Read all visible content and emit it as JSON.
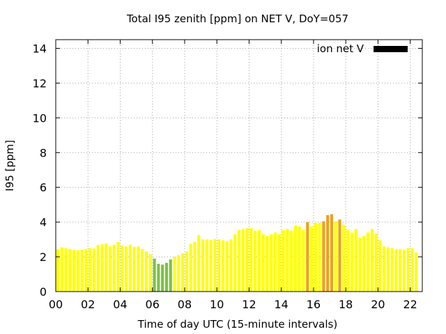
{
  "chart_data": {
    "type": "bar",
    "title": "Total I95 zenith [ppm] on NET V, DoY=057",
    "xlabel": "Time of day UTC (15-minute intervals)",
    "ylabel": "I95 [ppm]",
    "xlim": [
      0,
      22.75
    ],
    "ylim": [
      0,
      14.5
    ],
    "x_ticks": [
      "00",
      "02",
      "04",
      "06",
      "08",
      "10",
      "12",
      "14",
      "16",
      "18",
      "20",
      "22"
    ],
    "y_ticks": [
      "0",
      "2",
      "4",
      "6",
      "8",
      "10",
      "12",
      "14"
    ],
    "grid": true,
    "legend": {
      "label": "ion net V",
      "color": "#000000",
      "placement": "top-right"
    },
    "interval_hours": 0.25,
    "colors": {
      "low": "#7cc242",
      "normal": "#ffff00",
      "high": "#f0a01e"
    },
    "values": [
      2.42,
      2.55,
      2.5,
      2.45,
      2.4,
      2.38,
      2.42,
      2.45,
      2.5,
      2.48,
      2.68,
      2.72,
      2.78,
      2.6,
      2.7,
      2.85,
      2.65,
      2.6,
      2.7,
      2.58,
      2.6,
      2.45,
      2.3,
      2.15,
      1.9,
      1.6,
      1.55,
      1.65,
      1.85,
      2.0,
      2.1,
      2.2,
      2.3,
      2.75,
      2.85,
      3.25,
      3.0,
      3.0,
      2.98,
      3.02,
      3.0,
      2.95,
      2.9,
      3.0,
      3.3,
      3.55,
      3.6,
      3.65,
      3.65,
      3.5,
      3.55,
      3.3,
      3.2,
      3.3,
      3.4,
      3.3,
      3.55,
      3.6,
      3.5,
      3.8,
      3.75,
      3.55,
      4.0,
      3.75,
      3.95,
      3.95,
      4.05,
      4.4,
      4.45,
      4.05,
      4.15,
      3.85,
      3.55,
      3.4,
      3.6,
      3.1,
      3.2,
      3.4,
      3.6,
      3.35,
      2.95,
      2.6,
      2.55,
      2.5,
      2.45,
      2.45,
      2.4,
      2.5,
      2.5,
      2.25
    ],
    "levels": [
      "normal",
      "normal",
      "normal",
      "normal",
      "normal",
      "normal",
      "normal",
      "normal",
      "normal",
      "normal",
      "normal",
      "normal",
      "normal",
      "normal",
      "normal",
      "normal",
      "normal",
      "normal",
      "normal",
      "normal",
      "normal",
      "normal",
      "normal",
      "normal",
      "low",
      "low",
      "low",
      "low",
      "low",
      "normal",
      "normal",
      "normal",
      "normal",
      "normal",
      "normal",
      "normal",
      "normal",
      "normal",
      "normal",
      "normal",
      "normal",
      "normal",
      "normal",
      "normal",
      "normal",
      "normal",
      "normal",
      "normal",
      "normal",
      "normal",
      "normal",
      "normal",
      "normal",
      "normal",
      "normal",
      "normal",
      "normal",
      "normal",
      "normal",
      "normal",
      "normal",
      "normal",
      "high",
      "normal",
      "normal",
      "normal",
      "high",
      "high",
      "high",
      "normal",
      "high",
      "normal",
      "normal",
      "normal",
      "normal",
      "normal",
      "normal",
      "normal",
      "normal",
      "normal",
      "normal",
      "normal",
      "normal",
      "normal",
      "normal",
      "normal",
      "normal",
      "normal",
      "normal",
      "normal"
    ]
  }
}
